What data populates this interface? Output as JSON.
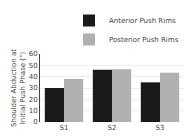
{
  "chart_data": {
    "type": "bar",
    "categories": [
      "S1",
      "S2",
      "S3"
    ],
    "series": [
      {
        "name": "Anterior Push Rims",
        "color": "#1a1a1a",
        "values": [
          30,
          46,
          35
        ]
      },
      {
        "name": "Posterior Push Rims",
        "color": "#b0b0b0",
        "values": [
          38,
          46.5,
          43.5
        ]
      }
    ],
    "ylabel": "Shoulder Abduction at\nInitial Push Phase (°)",
    "ylim": [
      0,
      60
    ],
    "yticks": [
      0,
      10,
      20,
      30,
      40,
      50,
      60
    ],
    "grid": true,
    "legend": "upper right"
  }
}
